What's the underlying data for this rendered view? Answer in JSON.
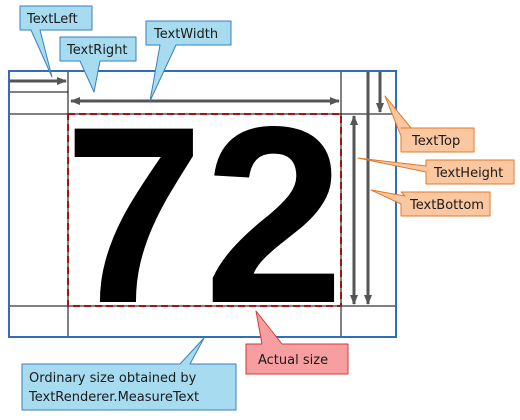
{
  "labels": {
    "text_left": "TextLeft",
    "text_right": "TextRight",
    "text_width": "TextWidth",
    "text_top": "TextTop",
    "text_height": "TextHeight",
    "text_bottom": "TextBottom",
    "actual_size": "Actual size",
    "ordinary_size_line1": "Ordinary size obtained by",
    "ordinary_size_line2": "TextRenderer.MeasureText"
  },
  "sample_text": "72",
  "colors": {
    "blue_callout_fill": "#a7dcf0",
    "blue_callout_stroke": "#3a7fc0",
    "orange_callout_fill": "#fbc7a0",
    "orange_callout_stroke": "#e07a2a",
    "red_callout_fill": "#f79ea0",
    "red_callout_stroke": "#d23a3a",
    "ordinary_rect_stroke": "#2f6fb6",
    "actual_rect_stroke": "#a31515",
    "arrow_color": "#555555"
  }
}
